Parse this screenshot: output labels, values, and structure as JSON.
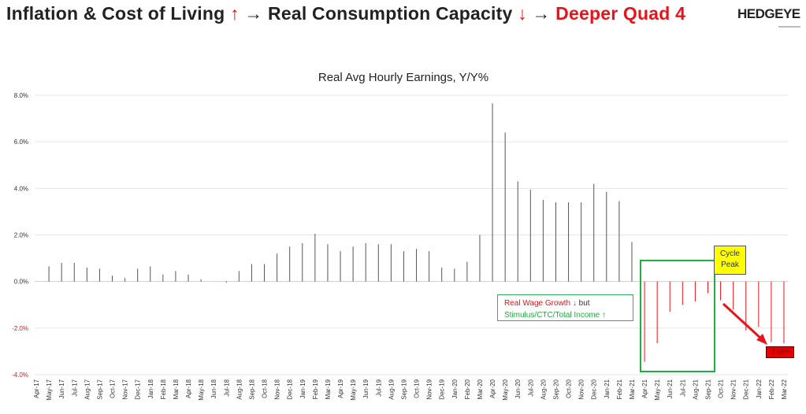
{
  "header": {
    "part1": "Inflation & Cost of Living",
    "up_arrow": "↑",
    "arrow1": "→",
    "part2": "Real Consumption Capacity",
    "down_arrow": "↓",
    "arrow2": "→",
    "part3": "Deeper Quad 4",
    "logo": "HEDGEYE"
  },
  "colors": {
    "positive": "#555555",
    "negative": "#e8141b",
    "accent_green": "#1fae3f",
    "peak_yellow": "#ffff00"
  },
  "annotations": {
    "wage_line1": "Real Wage Growth ↓",
    "wage_but": "but",
    "wage_line2": "Stimulus/CTC/Total Income ↑",
    "cycle": "Cycle",
    "peak": "Peak",
    "last_value": "-2.65%"
  },
  "chart_data": {
    "type": "bar",
    "title": "Real Avg Hourly Earnings, Y/Y%",
    "xlabel": "",
    "ylabel": "",
    "ylim": [
      -4,
      8
    ],
    "yticks": [
      "8.0%",
      "6.0%",
      "4.0%",
      "2.0%",
      "0.0%",
      "-2.0%",
      "-4.0%"
    ],
    "ytick_values": [
      8,
      6,
      4,
      2,
      0,
      -2,
      -4
    ],
    "grid": true,
    "categories": [
      "Apr-17",
      "May-17",
      "Jun-17",
      "Jul-17",
      "Aug-17",
      "Sep-17",
      "Oct-17",
      "Nov-17",
      "Dec-17",
      "Jan-18",
      "Feb-18",
      "Mar-18",
      "Apr-18",
      "May-18",
      "Jun-18",
      "Jul-18",
      "Aug-18",
      "Sep-18",
      "Oct-18",
      "Nov-18",
      "Dec-18",
      "Jan-19",
      "Feb-19",
      "Mar-19",
      "Apr-19",
      "May-19",
      "Jun-19",
      "Jul-19",
      "Aug-19",
      "Sep-19",
      "Oct-19",
      "Nov-19",
      "Dec-19",
      "Jan-20",
      "Feb-20",
      "Mar-20",
      "Apr-20",
      "May-20",
      "Jun-20",
      "Jul-20",
      "Aug-20",
      "Sep-20",
      "Oct-20",
      "Nov-20",
      "Dec-20",
      "Jan-21",
      "Feb-21",
      "Mar-21",
      "Apr-21",
      "May-21",
      "Jun-21",
      "Jul-21",
      "Aug-21",
      "Sep-21",
      "Oct-21",
      "Nov-21",
      "Dec-21",
      "Jan-22",
      "Feb-22",
      "Mar-22"
    ],
    "values": [
      0.0,
      0.65,
      0.8,
      0.8,
      0.6,
      0.55,
      0.25,
      0.15,
      0.55,
      0.65,
      0.3,
      0.45,
      0.3,
      0.1,
      0.0,
      -0.05,
      0.45,
      0.75,
      0.75,
      1.2,
      1.5,
      1.65,
      2.05,
      1.6,
      1.3,
      1.5,
      1.65,
      1.6,
      1.6,
      1.3,
      1.4,
      1.3,
      0.6,
      0.55,
      0.85,
      2.0,
      7.65,
      6.4,
      4.3,
      3.95,
      3.5,
      3.4,
      3.4,
      3.4,
      4.2,
      3.85,
      3.45,
      1.7,
      -3.45,
      -2.65,
      -1.3,
      -1.0,
      -0.85,
      -0.5,
      -0.8,
      -1.2,
      -2.1,
      -1.95,
      -2.6,
      -2.65
    ]
  }
}
